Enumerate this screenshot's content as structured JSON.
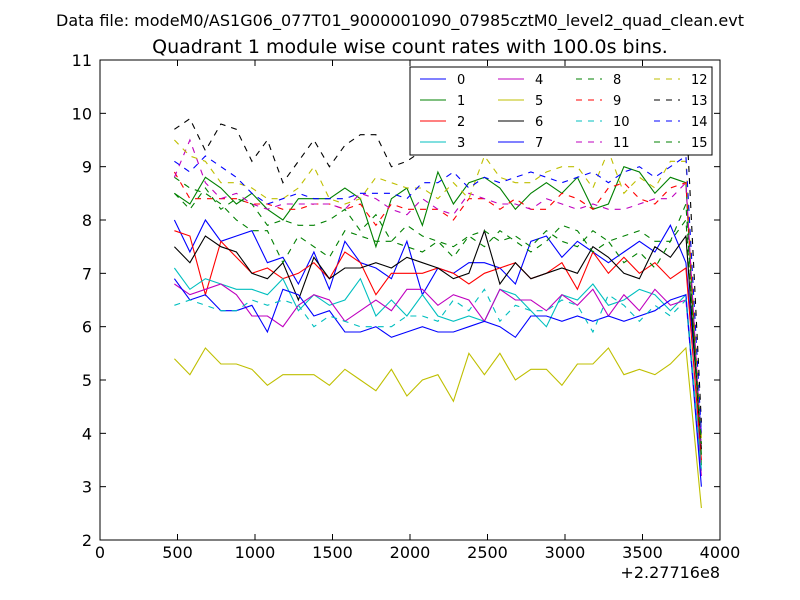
{
  "chart_data": {
    "type": "line",
    "suptitle": "Data file: modeM0/AS1G06_077T01_9000001090_07985cztM0_level2_quad_clean.evt",
    "title": "Quadrant 1 module wise count rates with 100.0s bins.",
    "xlabel": "",
    "ylabel": "",
    "x_offset_label": "+2.27716e8",
    "xlim": [
      0,
      4000
    ],
    "ylim": [
      2,
      11
    ],
    "xticks": [
      0,
      500,
      1000,
      1500,
      2000,
      2500,
      3000,
      3500,
      4000
    ],
    "yticks": [
      2,
      3,
      4,
      5,
      6,
      7,
      8,
      9,
      10,
      11
    ],
    "grid": false,
    "legend_position": "top-right",
    "legend_columns": 4,
    "x": [
      480,
      580,
      680,
      780,
      880,
      980,
      1080,
      1180,
      1280,
      1380,
      1480,
      1580,
      1680,
      1780,
      1880,
      1980,
      2080,
      2180,
      2280,
      2380,
      2480,
      2580,
      2680,
      2780,
      2880,
      2980,
      3080,
      3180,
      3280,
      3380,
      3480,
      3580,
      3680,
      3780,
      3880
    ],
    "series": [
      {
        "name": "0",
        "color": "#0000ff",
        "dash": "solid",
        "values": [
          8.0,
          7.4,
          8.0,
          7.6,
          7.7,
          7.8,
          7.2,
          7.3,
          6.8,
          7.4,
          6.7,
          7.6,
          7.2,
          7.1,
          6.9,
          7.6,
          6.6,
          7.1,
          7.0,
          7.2,
          7.2,
          7.1,
          6.8,
          7.6,
          7.7,
          7.3,
          7.6,
          7.4,
          7.2,
          7.4,
          7.6,
          7.4,
          7.9,
          7.2,
          4.0
        ]
      },
      {
        "name": "1",
        "color": "#008000",
        "dash": "solid",
        "values": [
          8.5,
          8.3,
          8.8,
          8.6,
          8.3,
          8.5,
          8.2,
          8.0,
          8.4,
          8.4,
          8.4,
          8.6,
          8.4,
          7.5,
          8.4,
          8.6,
          7.9,
          8.9,
          8.3,
          8.7,
          8.8,
          8.6,
          8.2,
          8.5,
          8.7,
          8.5,
          8.8,
          8.2,
          8.3,
          9.0,
          8.9,
          8.5,
          8.8,
          8.7,
          3.4
        ]
      },
      {
        "name": "2",
        "color": "#ff0000",
        "dash": "solid",
        "values": [
          7.8,
          7.7,
          6.6,
          7.6,
          7.3,
          7.0,
          7.1,
          6.9,
          7.0,
          7.2,
          6.9,
          7.4,
          7.2,
          6.6,
          7.0,
          7.0,
          7.0,
          7.1,
          7.0,
          6.8,
          7.0,
          7.1,
          7.2,
          6.9,
          7.0,
          7.2,
          6.7,
          7.4,
          7.0,
          7.3,
          7.0,
          7.2,
          6.9,
          7.1,
          3.5
        ]
      },
      {
        "name": "3",
        "color": "#00bfbf",
        "dash": "solid",
        "values": [
          7.1,
          6.7,
          6.9,
          6.8,
          6.7,
          6.7,
          6.6,
          6.9,
          6.3,
          6.6,
          6.4,
          6.5,
          6.9,
          6.2,
          6.5,
          6.2,
          6.6,
          6.2,
          6.1,
          6.2,
          6.1,
          6.7,
          6.6,
          6.3,
          6.0,
          6.6,
          6.5,
          6.8,
          6.4,
          6.5,
          6.7,
          6.6,
          6.3,
          6.6,
          3.3
        ]
      },
      {
        "name": "4",
        "color": "#bf00bf",
        "dash": "solid",
        "values": [
          6.8,
          6.6,
          6.7,
          6.8,
          6.6,
          6.2,
          6.2,
          6.0,
          6.4,
          6.6,
          6.5,
          6.1,
          6.3,
          6.5,
          6.3,
          6.7,
          6.7,
          6.4,
          6.6,
          6.5,
          6.1,
          6.7,
          6.5,
          6.5,
          6.3,
          6.6,
          6.4,
          6.7,
          6.2,
          6.6,
          6.3,
          6.7,
          6.4,
          6.5,
          3.2
        ]
      },
      {
        "name": "5",
        "color": "#bfbf00",
        "dash": "solid",
        "values": [
          5.4,
          5.1,
          5.6,
          5.3,
          5.3,
          5.2,
          4.9,
          5.1,
          5.1,
          5.1,
          4.9,
          5.2,
          5.0,
          4.8,
          5.2,
          4.7,
          5.0,
          5.1,
          4.6,
          5.5,
          5.1,
          5.5,
          5.0,
          5.2,
          5.2,
          4.9,
          5.3,
          5.3,
          5.6,
          5.1,
          5.2,
          5.1,
          5.3,
          5.6,
          2.6
        ]
      },
      {
        "name": "6",
        "color": "#000000",
        "dash": "solid",
        "values": [
          7.5,
          7.2,
          7.7,
          7.5,
          7.4,
          7.0,
          6.9,
          7.2,
          6.5,
          7.3,
          6.9,
          7.1,
          7.1,
          7.2,
          7.1,
          7.3,
          7.2,
          7.1,
          6.9,
          7.0,
          7.8,
          6.8,
          7.2,
          6.9,
          7.0,
          7.1,
          7.0,
          7.5,
          7.3,
          7.0,
          6.9,
          7.5,
          7.3,
          7.7,
          3.7
        ]
      },
      {
        "name": "7",
        "color": "#0000ff",
        "dash": "solid",
        "values": [
          6.9,
          6.5,
          6.6,
          6.3,
          6.3,
          6.4,
          5.9,
          6.7,
          6.6,
          6.2,
          6.3,
          5.9,
          5.9,
          6.0,
          5.8,
          5.9,
          6.0,
          5.9,
          5.9,
          6.0,
          6.1,
          6.0,
          5.8,
          6.2,
          6.2,
          6.1,
          6.2,
          6.1,
          6.2,
          6.1,
          6.2,
          6.3,
          6.5,
          6.6,
          3.0
        ]
      },
      {
        "name": "8",
        "color": "#008000",
        "dash": "dashed",
        "values": [
          8.8,
          8.6,
          8.5,
          8.3,
          8.0,
          7.8,
          7.8,
          7.2,
          7.7,
          7.5,
          7.3,
          7.8,
          7.7,
          7.6,
          7.6,
          7.5,
          7.4,
          7.6,
          7.3,
          7.7,
          7.5,
          7.8,
          7.6,
          7.4,
          7.6,
          7.9,
          7.8,
          7.4,
          7.6,
          7.2,
          7.4,
          7.1,
          7.6,
          8.3,
          3.6
        ]
      },
      {
        "name": "9",
        "color": "#ff0000",
        "dash": "dashed",
        "values": [
          8.9,
          8.4,
          8.4,
          8.4,
          8.4,
          8.3,
          8.3,
          8.2,
          8.2,
          8.3,
          8.3,
          8.2,
          8.3,
          7.9,
          8.3,
          8.2,
          8.2,
          8.2,
          8.0,
          8.4,
          8.4,
          8.2,
          8.4,
          8.2,
          8.2,
          8.5,
          8.4,
          8.2,
          8.6,
          8.7,
          8.4,
          8.3,
          8.6,
          8.7,
          3.8
        ]
      },
      {
        "name": "10",
        "color": "#00bfbf",
        "dash": "dashed",
        "values": [
          6.4,
          6.5,
          6.4,
          6.3,
          6.3,
          6.5,
          6.4,
          6.5,
          6.4,
          6.0,
          6.2,
          6.1,
          6.0,
          6.0,
          6.0,
          6.2,
          6.2,
          6.1,
          6.5,
          6.3,
          6.7,
          6.1,
          6.4,
          6.3,
          6.3,
          6.5,
          6.4,
          5.9,
          6.6,
          6.4,
          6.1,
          6.4,
          6.2,
          6.5,
          3.3
        ]
      },
      {
        "name": "11",
        "color": "#bf00bf",
        "dash": "dashed",
        "values": [
          8.8,
          9.5,
          8.7,
          8.4,
          8.5,
          8.3,
          8.2,
          8.3,
          8.3,
          8.3,
          8.3,
          8.2,
          8.5,
          8.4,
          8.2,
          8.1,
          8.4,
          8.2,
          8.1,
          8.5,
          8.4,
          8.3,
          8.3,
          8.2,
          8.4,
          8.3,
          8.2,
          8.3,
          8.2,
          8.2,
          8.3,
          8.4,
          8.4,
          8.7,
          3.7
        ]
      },
      {
        "name": "12",
        "color": "#bfbf00",
        "dash": "dashed",
        "values": [
          9.5,
          9.2,
          9.1,
          8.7,
          8.7,
          8.6,
          8.4,
          8.4,
          8.6,
          9.0,
          8.4,
          8.3,
          8.4,
          8.8,
          8.7,
          8.6,
          8.6,
          8.4,
          8.7,
          8.4,
          9.2,
          8.8,
          8.7,
          8.7,
          8.9,
          9.0,
          9.0,
          8.6,
          9.3,
          8.5,
          8.8,
          8.6,
          9.1,
          9.1,
          3.9
        ]
      },
      {
        "name": "13",
        "color": "#000000",
        "dash": "dashed",
        "values": [
          9.7,
          9.9,
          9.3,
          9.8,
          9.7,
          9.1,
          9.5,
          8.7,
          9.1,
          9.5,
          9.0,
          9.4,
          9.6,
          9.6,
          9.0,
          9.1,
          9.3,
          9.5,
          9.3,
          9.8,
          9.5,
          9.6,
          9.4,
          9.7,
          9.5,
          9.6,
          9.7,
          9.8,
          9.8,
          10.3,
          10.0,
          9.7,
          10.0,
          10.1,
          4.2
        ]
      },
      {
        "name": "14",
        "color": "#0000ff",
        "dash": "dashed",
        "values": [
          9.1,
          8.9,
          9.2,
          9.0,
          8.8,
          8.5,
          8.3,
          8.4,
          8.5,
          8.4,
          8.4,
          8.4,
          8.5,
          8.5,
          8.5,
          8.4,
          8.7,
          8.7,
          8.9,
          8.6,
          8.8,
          8.7,
          8.8,
          8.9,
          8.8,
          8.7,
          8.8,
          8.9,
          8.7,
          8.9,
          9.0,
          8.8,
          9.0,
          9.2,
          4.0
        ]
      },
      {
        "name": "15",
        "color": "#008000",
        "dash": "dashed",
        "values": [
          8.5,
          8.2,
          8.6,
          8.2,
          8.4,
          8.3,
          7.9,
          8.0,
          7.9,
          7.9,
          8.0,
          8.2,
          7.8,
          8.1,
          7.6,
          7.9,
          7.7,
          7.6,
          7.5,
          7.7,
          7.8,
          7.6,
          7.7,
          7.5,
          7.8,
          7.6,
          7.5,
          7.8,
          7.6,
          7.7,
          7.8,
          7.6,
          7.6,
          8.0,
          3.8
        ]
      }
    ]
  }
}
